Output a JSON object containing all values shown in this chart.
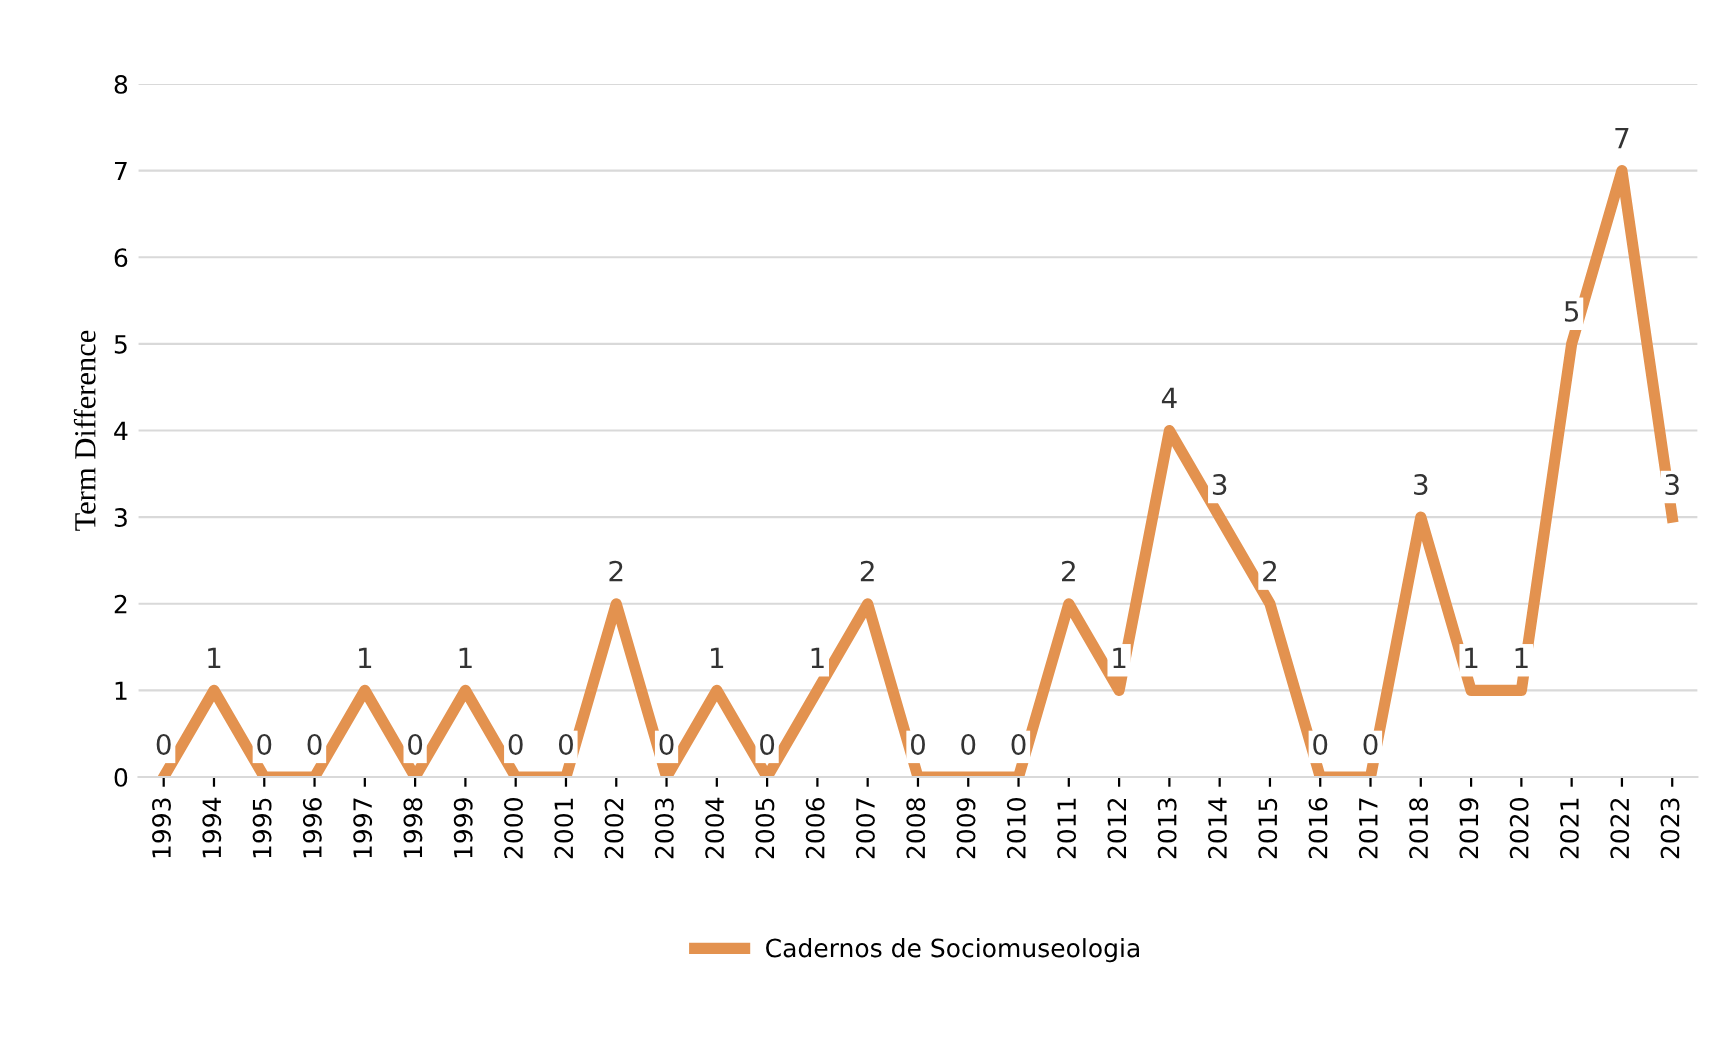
{
  "chart_data": {
    "type": "line",
    "ylabel": "Term Difference",
    "categories": [
      "1993",
      "1994",
      "1995",
      "1996",
      "1997",
      "1998",
      "1999",
      "2000",
      "2001",
      "2002",
      "2003",
      "2004",
      "2005",
      "2006",
      "2007",
      "2008",
      "2009",
      "2010",
      "2011",
      "2012",
      "2013",
      "2014",
      "2015",
      "2016",
      "2017",
      "2018",
      "2019",
      "2020",
      "2021",
      "2022",
      "2023"
    ],
    "series": [
      {
        "name": "Cadernos de Sociomuseologia",
        "color": "#e3924f",
        "values": [
          0,
          1,
          0,
          0,
          1,
          0,
          1,
          0,
          0,
          2,
          0,
          1,
          0,
          1,
          2,
          0,
          0,
          0,
          2,
          1,
          4,
          3,
          2,
          0,
          0,
          3,
          1,
          1,
          5,
          7,
          3
        ]
      }
    ],
    "ylim": [
      0,
      8
    ],
    "yticks": [
      0,
      1,
      2,
      3,
      4,
      5,
      6,
      7,
      8
    ],
    "grid": "y",
    "legend": "bottom",
    "data_labels": true,
    "marker": "none",
    "line_style": "solid"
  }
}
